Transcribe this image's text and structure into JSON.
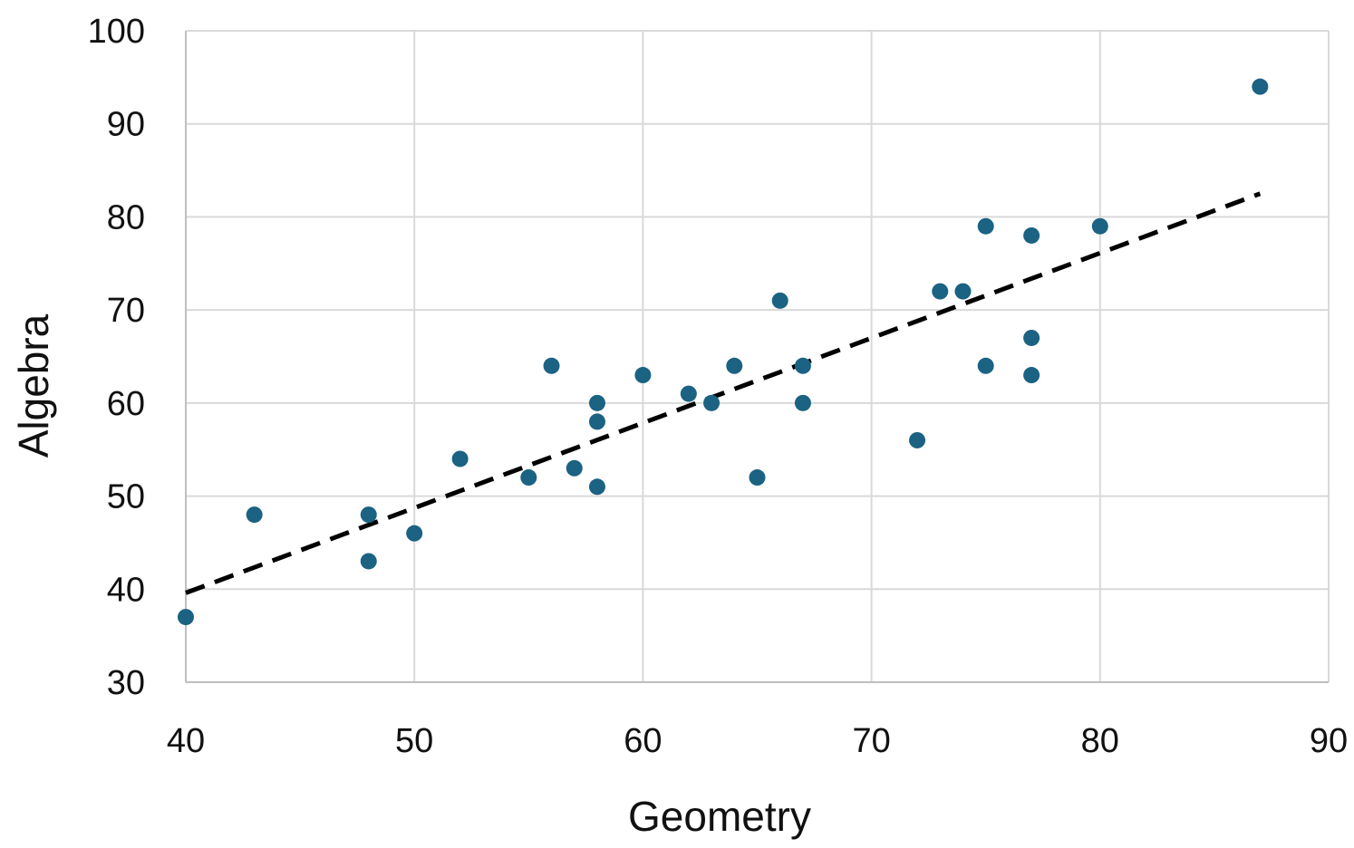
{
  "chart_data": {
    "type": "scatter",
    "xlabel": "Geometry",
    "ylabel": "Algebra",
    "xlim": [
      40,
      90
    ],
    "ylim": [
      30,
      100
    ],
    "xticks": [
      "40",
      "50",
      "60",
      "70",
      "80",
      "90"
    ],
    "yticks": [
      "30",
      "40",
      "50",
      "60",
      "70",
      "80",
      "90",
      "100"
    ],
    "grid": true,
    "legend": "none",
    "colors": {
      "points": "#1b6283",
      "trendline": "#000000",
      "grid": "#d9d9d9",
      "axis": "#bfbfbf"
    },
    "series": [
      {
        "points": [
          [
            40,
            37
          ],
          [
            43,
            48
          ],
          [
            48,
            48
          ],
          [
            48,
            43
          ],
          [
            50,
            46
          ],
          [
            52,
            54
          ],
          [
            55,
            52
          ],
          [
            56,
            64
          ],
          [
            57,
            53
          ],
          [
            58,
            60
          ],
          [
            58,
            58
          ],
          [
            58,
            51
          ],
          [
            60,
            63
          ],
          [
            62,
            61
          ],
          [
            63,
            60
          ],
          [
            64,
            64
          ],
          [
            65,
            52
          ],
          [
            66,
            71
          ],
          [
            67,
            64
          ],
          [
            67,
            60
          ],
          [
            72,
            56
          ],
          [
            73,
            72
          ],
          [
            74,
            72
          ],
          [
            75,
            79
          ],
          [
            75,
            64
          ],
          [
            77,
            78
          ],
          [
            77,
            67
          ],
          [
            77,
            63
          ],
          [
            80,
            79
          ],
          [
            87,
            94
          ]
        ]
      }
    ],
    "trendline": {
      "style": "dashed",
      "x": [
        40,
        87
      ],
      "y": [
        39.6,
        82.5
      ]
    }
  }
}
